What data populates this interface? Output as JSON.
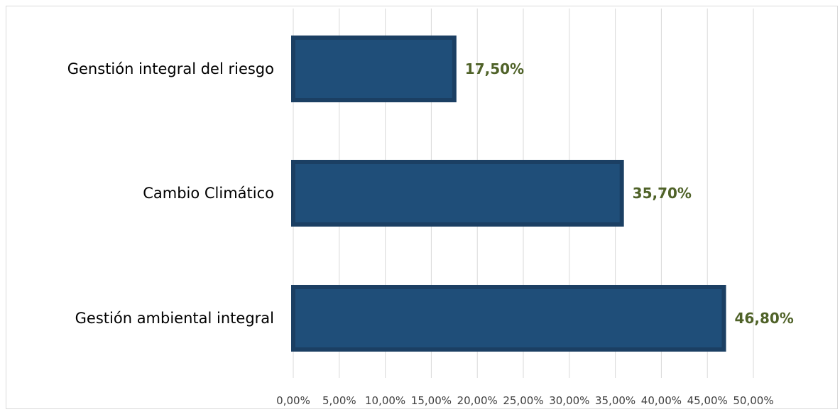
{
  "chart_data": {
    "type": "bar",
    "orientation": "horizontal",
    "categories": [
      "Genstión integral del riesgo",
      "Cambio Climático",
      "Gestión ambiental integral"
    ],
    "values": [
      17.5,
      35.7,
      46.8
    ],
    "value_labels": [
      "17,50%",
      "35,70%",
      "46,80%"
    ],
    "xlim": [
      0,
      50
    ],
    "x_ticks": [
      0,
      5,
      10,
      15,
      20,
      25,
      30,
      35,
      40,
      45,
      50
    ],
    "x_tick_labels": [
      "0,00%",
      "5,00%",
      "10,00%",
      "15,00%",
      "20,00%",
      "25,00%",
      "30,00%",
      "35,00%",
      "40,00%",
      "45,00%",
      "50,00%"
    ],
    "grid": "vertical",
    "title": "",
    "xlabel": "",
    "ylabel": "",
    "colors": {
      "bar_fill": "#1f4e79",
      "bar_border": "#1b3f63",
      "value_label": "#4f6228",
      "grid": "#d9d9d9",
      "category_text": "#000000",
      "tick_text": "#404040"
    }
  }
}
